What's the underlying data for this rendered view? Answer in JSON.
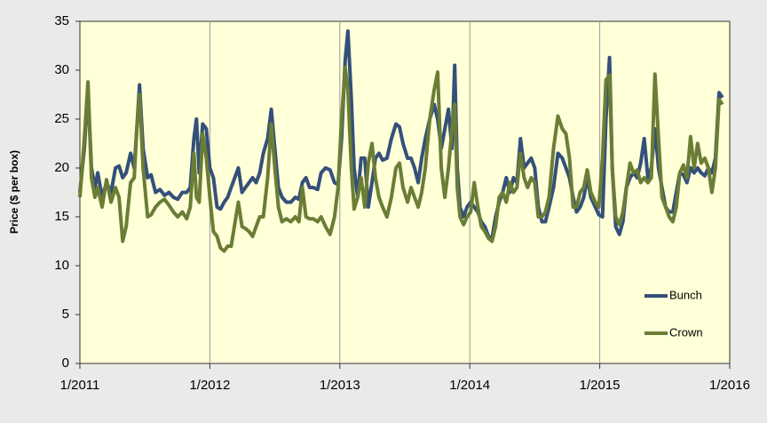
{
  "chart_data": {
    "type": "line",
    "y_label": "Price ($ per box)",
    "xlim": [
      2011,
      2016
    ],
    "xticks": [
      {
        "value": 2011,
        "label": "1/2011"
      },
      {
        "value": 2012,
        "label": "1/2012"
      },
      {
        "value": 2013,
        "label": "1/2013"
      },
      {
        "value": 2014,
        "label": "1/2014"
      },
      {
        "value": 2015,
        "label": "1/2015"
      },
      {
        "value": 2016,
        "label": "1/2016"
      }
    ],
    "ylim": [
      0,
      35
    ],
    "yticks": [
      0,
      5,
      10,
      15,
      20,
      25,
      30,
      35
    ],
    "grid": "x",
    "legend": "lower right",
    "x": [
      2011.0,
      2011.034,
      2011.062,
      2011.089,
      2011.116,
      2011.137,
      2011.171,
      2011.205,
      2011.24,
      2011.274,
      2011.301,
      2011.329,
      2011.356,
      2011.39,
      2011.418,
      2011.438,
      2011.459,
      2011.486,
      2011.521,
      2011.548,
      2011.582,
      2011.616,
      2011.651,
      2011.685,
      2011.719,
      2011.753,
      2011.788,
      2011.822,
      2011.849,
      2011.877,
      2011.897,
      2011.918,
      2011.945,
      2011.973,
      2012.0,
      2012.027,
      2012.055,
      2012.082,
      2012.11,
      2012.137,
      2012.164,
      2012.219,
      2012.247,
      2012.274,
      2012.301,
      2012.329,
      2012.356,
      2012.384,
      2012.411,
      2012.445,
      2012.473,
      2012.5,
      2012.527,
      2012.555,
      2012.589,
      2012.623,
      2012.658,
      2012.685,
      2012.712,
      2012.74,
      2012.767,
      2012.795,
      2012.829,
      2012.856,
      2012.89,
      2012.925,
      2012.959,
      2012.986,
      2013.014,
      2013.041,
      2013.062,
      2013.089,
      2013.11,
      2013.137,
      2013.164,
      2013.192,
      2013.219,
      2013.247,
      2013.274,
      2013.301,
      2013.329,
      2013.363,
      2013.397,
      2013.432,
      2013.459,
      2013.486,
      2013.521,
      2013.548,
      2013.575,
      2013.603,
      2013.63,
      2013.658,
      2013.692,
      2013.726,
      2013.753,
      2013.781,
      2013.808,
      2013.836,
      2013.863,
      2013.884,
      2013.904,
      2013.925,
      2013.952,
      2013.979,
      2014.007,
      2014.034,
      2014.062,
      2014.089,
      2014.116,
      2014.144,
      2014.171,
      2014.199,
      2014.226,
      2014.253,
      2014.281,
      2014.308,
      2014.336,
      2014.363,
      2014.39,
      2014.418,
      2014.445,
      2014.473,
      2014.5,
      2014.527,
      2014.555,
      2014.582,
      2014.61,
      2014.644,
      2014.678,
      2014.712,
      2014.74,
      2014.767,
      2014.795,
      2014.822,
      2014.849,
      2014.877,
      2014.904,
      2014.932,
      2014.966,
      2014.993,
      2015.021,
      2015.048,
      2015.075,
      2015.096,
      2015.123,
      2015.151,
      2015.178,
      2015.205,
      2015.233,
      2015.26,
      2015.288,
      2015.315,
      2015.342,
      2015.37,
      2015.397,
      2015.425,
      2015.452,
      2015.479,
      2015.507,
      2015.534,
      2015.562,
      2015.589,
      2015.616,
      2015.644,
      2015.671,
      2015.699,
      2015.726,
      2015.753,
      2015.781,
      2015.808,
      2015.836,
      2015.863,
      2015.89,
      2015.918,
      2015.945
    ],
    "series": [
      {
        "name": "Bunch",
        "color": "#34507a",
        "values": [
          17.5,
          22,
          28,
          20,
          18,
          19.5,
          17,
          18.5,
          17.5,
          20,
          20.2,
          19,
          19.5,
          21.5,
          20,
          24,
          28.5,
          22,
          19,
          19.3,
          17.5,
          17.8,
          17.2,
          17.5,
          17,
          16.8,
          17.5,
          17.5,
          18,
          23,
          25,
          19.5,
          24.5,
          24,
          20,
          19,
          16,
          15.8,
          16.5,
          17,
          18,
          20,
          17.5,
          18,
          18.5,
          19,
          18.5,
          19.5,
          21.5,
          23,
          26,
          22,
          18,
          17,
          16.5,
          16.5,
          17,
          16.8,
          18.5,
          19,
          18,
          18,
          17.8,
          19.5,
          20,
          19.8,
          18.5,
          18.3,
          23,
          31,
          34,
          27,
          20,
          17,
          21,
          21,
          16,
          18.5,
          21,
          21.5,
          20.8,
          21,
          23,
          24.5,
          24.2,
          22.5,
          21,
          21,
          20,
          18.5,
          21,
          23,
          25,
          26.5,
          25,
          22,
          24,
          26,
          22,
          30.5,
          20,
          16,
          15,
          16,
          16.5,
          16,
          15.5,
          14.5,
          14,
          13,
          12.8,
          15,
          16.5,
          17.5,
          19,
          17.5,
          19,
          18.5,
          23,
          20,
          20.5,
          21,
          20,
          16,
          14.5,
          14.5,
          16,
          18,
          21.5,
          21,
          20,
          19,
          17,
          15.5,
          16,
          17,
          19,
          17,
          16,
          15.2,
          15,
          25,
          31.3,
          20,
          14,
          13.2,
          14.5,
          18,
          19,
          19.5,
          19,
          20.5,
          23,
          19,
          20,
          24,
          20,
          18,
          16,
          15.5,
          15.5,
          17.5,
          19.5,
          19.3,
          18.5,
          20,
          19.5,
          20,
          19.5,
          19.2,
          20,
          19.5,
          21,
          27.7,
          27.2
        ]
      },
      {
        "name": "Crown",
        "color": "#6b7d35",
        "values": [
          17,
          23,
          28.8,
          19,
          17,
          18,
          16,
          18.8,
          16.5,
          18,
          17,
          12.5,
          14,
          18.5,
          19,
          24,
          27.5,
          20,
          15,
          15.2,
          16,
          16.5,
          16.8,
          16.2,
          15.5,
          15,
          15.5,
          14.8,
          16,
          21.5,
          17,
          16.5,
          23.5,
          21,
          17,
          13.5,
          13,
          11.8,
          11.5,
          12,
          12,
          16.5,
          14,
          13.8,
          13.5,
          13,
          14,
          15,
          15,
          19,
          24.5,
          20,
          16,
          14.5,
          14.8,
          14.5,
          15,
          14.5,
          18,
          15,
          14.8,
          14.8,
          14.5,
          15,
          14,
          13.2,
          15,
          18,
          25,
          30.3,
          28,
          20,
          15.8,
          17,
          19,
          16,
          20.5,
          22.5,
          19,
          17,
          16,
          15,
          17,
          20,
          20.5,
          18,
          16.5,
          18,
          17,
          16,
          17.5,
          20,
          25,
          28,
          29.8,
          20,
          17,
          20,
          24,
          26.5,
          18,
          15,
          14.2,
          15,
          15.5,
          18.5,
          16,
          14,
          13.5,
          12.8,
          12.5,
          14,
          17,
          17.5,
          16.5,
          18.5,
          17.5,
          18,
          21.5,
          19,
          18,
          19,
          18.5,
          15,
          15,
          15.5,
          17,
          22,
          25.3,
          24,
          23.5,
          21,
          16,
          16,
          17.5,
          18,
          19.8,
          17.5,
          16.5,
          16,
          21,
          29,
          29.5,
          20,
          15,
          14.2,
          15.5,
          18,
          20.5,
          19.5,
          19.8,
          18.5,
          19,
          18.5,
          19,
          29.6,
          23,
          17,
          16,
          15,
          14.5,
          16,
          19.5,
          20.3,
          19,
          23.2,
          20,
          22.5,
          20.5,
          21,
          20,
          17.5,
          20,
          27,
          26.5
        ]
      }
    ]
  }
}
